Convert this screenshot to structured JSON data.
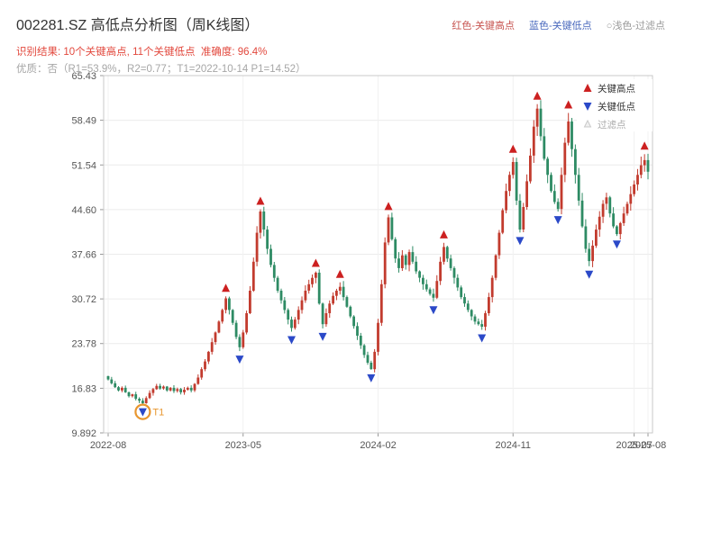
{
  "header": {
    "title": "002281.SZ 高低点分析图（周K线图）",
    "legend_high": "红色-关键高点",
    "legend_low": "蓝色-关键低点",
    "legend_filter": "○浅色-过滤点",
    "result_line": "识别结果: 10个关键高点, 11个关键低点  准确度: 96.4%",
    "quality_line": "优质：否（R1=53.9%，R2=0.77；T1=2022-10-14 P1=14.52）"
  },
  "chart_data": {
    "type": "candlestick",
    "title": "002281.SZ 高低点分析图（周K线图）",
    "symbol": "002281.SZ",
    "period": "weekly",
    "start": "2022-08",
    "end": "2025-08",
    "ylim": [
      9.892,
      65.43
    ],
    "y_ticks": [
      65.43,
      58.49,
      51.54,
      44.6,
      37.66,
      30.72,
      23.78,
      16.83,
      9.892
    ],
    "y_tick_labels": [
      "65.43",
      "58.49",
      "51.54",
      "44.60",
      "37.66",
      "30.72",
      "23.78",
      "16.83",
      "9.892"
    ],
    "x_ticks": [
      {
        "week": 0,
        "label": "2022-08"
      },
      {
        "week": 39,
        "label": "2023-05"
      },
      {
        "week": 78,
        "label": "2024-02"
      },
      {
        "week": 117,
        "label": "2024-11"
      },
      {
        "week": 152,
        "label": "2025-07"
      },
      {
        "week": 156,
        "label": "2025-08"
      }
    ],
    "closes": [
      18.2,
      17.6,
      17.0,
      16.5,
      16.9,
      16.2,
      15.6,
      15.9,
      15.2,
      14.9,
      14.5,
      15.3,
      16.1,
      16.7,
      17.2,
      16.8,
      17.1,
      16.5,
      16.9,
      16.4,
      16.7,
      16.2,
      16.6,
      16.9,
      16.5,
      17.5,
      18.5,
      19.8,
      21.0,
      22.5,
      24.0,
      25.5,
      27.2,
      29.0,
      30.8,
      29.0,
      27.0,
      24.8,
      23.2,
      25.5,
      28.5,
      32.0,
      36.5,
      41.0,
      44.3,
      41.5,
      38.5,
      36.0,
      34.0,
      32.0,
      30.5,
      29.0,
      27.5,
      26.2,
      27.5,
      29.0,
      30.5,
      32.0,
      33.0,
      34.0,
      34.8,
      30.0,
      26.8,
      28.5,
      30.0,
      31.2,
      32.0,
      32.6,
      31.0,
      29.5,
      28.0,
      26.5,
      25.0,
      23.5,
      22.0,
      20.8,
      19.8,
      22.5,
      27.0,
      33.0,
      39.5,
      43.4,
      40.0,
      37.0,
      35.5,
      37.5,
      36.0,
      38.0,
      36.5,
      35.0,
      34.0,
      33.0,
      32.2,
      31.5,
      30.9,
      33.5,
      36.5,
      38.8,
      37.0,
      35.5,
      34.0,
      32.5,
      31.0,
      30.0,
      29.0,
      28.0,
      27.2,
      26.8,
      26.4,
      28.5,
      31.0,
      34.0,
      37.5,
      41.0,
      44.5,
      47.5,
      50.0,
      52.0,
      46.0,
      41.5,
      45.0,
      49.0,
      53.0,
      57.5,
      60.3,
      56.0,
      52.5,
      50.0,
      47.5,
      45.8,
      44.7,
      50.0,
      55.0,
      58.3,
      54.0,
      50.0,
      46.0,
      42.0,
      38.5,
      36.6,
      39.0,
      41.5,
      43.5,
      45.5,
      46.5,
      44.0,
      42.0,
      40.8,
      42.5,
      44.0,
      45.5,
      47.0,
      48.5,
      50.0,
      51.5,
      52.3,
      50.5
    ],
    "key_highs": [
      {
        "week": 34,
        "price": 30.8
      },
      {
        "week": 44,
        "price": 44.3
      },
      {
        "week": 60,
        "price": 34.8
      },
      {
        "week": 67,
        "price": 32.6
      },
      {
        "week": 81,
        "price": 43.4
      },
      {
        "week": 97,
        "price": 38.8
      },
      {
        "week": 117,
        "price": 52.0
      },
      {
        "week": 124,
        "price": 60.3
      },
      {
        "week": 133,
        "price": 58.3
      },
      {
        "week": 155,
        "price": 52.3
      }
    ],
    "key_lows": [
      {
        "week": 10,
        "price": 14.5
      },
      {
        "week": 38,
        "price": 23.2
      },
      {
        "week": 53,
        "price": 26.2
      },
      {
        "week": 62,
        "price": 26.8
      },
      {
        "week": 76,
        "price": 19.8
      },
      {
        "week": 94,
        "price": 30.9
      },
      {
        "week": 108,
        "price": 26.4
      },
      {
        "week": 119,
        "price": 41.5
      },
      {
        "week": 130,
        "price": 44.7
      },
      {
        "week": 139,
        "price": 36.6
      },
      {
        "week": 147,
        "price": 40.8
      }
    ],
    "annotation": {
      "label": "T1",
      "week": 10,
      "price": 14.52
    },
    "legend_items": [
      "关键高点",
      "关键低点",
      "过滤点"
    ],
    "colors": {
      "up": "#c23b2e",
      "down": "#2e8b64",
      "key_high": "#cc2020",
      "key_low": "#2b49c8",
      "filter": "#c9c9c9",
      "annotation": "#e8962e",
      "grid": "#ececec",
      "border": "#c9c9c9"
    }
  }
}
